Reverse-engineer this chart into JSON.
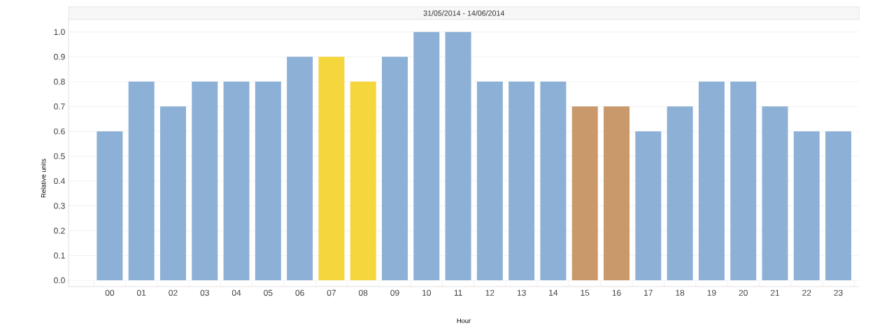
{
  "chart_data": {
    "type": "bar",
    "title": "31/05/2014 - 14/06/2014",
    "xlabel": "Hour",
    "ylabel": "Relative units",
    "categories": [
      "00",
      "01",
      "02",
      "03",
      "04",
      "05",
      "06",
      "07",
      "08",
      "09",
      "10",
      "11",
      "12",
      "13",
      "14",
      "15",
      "16",
      "17",
      "18",
      "19",
      "20",
      "21",
      "22",
      "23"
    ],
    "values": [
      0.6,
      0.8,
      0.7,
      0.8,
      0.8,
      0.8,
      0.9,
      0.9,
      0.8,
      0.9,
      1.0,
      1.0,
      0.8,
      0.8,
      0.8,
      0.7,
      0.7,
      0.6,
      0.7,
      0.8,
      0.8,
      0.7,
      0.6,
      0.6
    ],
    "colors": [
      "#8db0d6",
      "#8db0d6",
      "#8db0d6",
      "#8db0d6",
      "#8db0d6",
      "#8db0d6",
      "#8db0d6",
      "#f5d63d",
      "#f5d63d",
      "#8db0d6",
      "#8db0d6",
      "#8db0d6",
      "#8db0d6",
      "#8db0d6",
      "#8db0d6",
      "#c9996b",
      "#c9996b",
      "#8db0d6",
      "#8db0d6",
      "#8db0d6",
      "#8db0d6",
      "#8db0d6",
      "#8db0d6",
      "#8db0d6"
    ],
    "ylim": [
      -0.025,
      1.05
    ],
    "yticks": [
      {
        "value": 0,
        "label": "0.0"
      },
      0.1,
      0.2,
      0.3,
      0.4,
      0.5,
      0.6,
      0.7,
      0.8,
      0.9,
      {
        "value": 1,
        "label": "1.0"
      }
    ],
    "grid": "y"
  }
}
